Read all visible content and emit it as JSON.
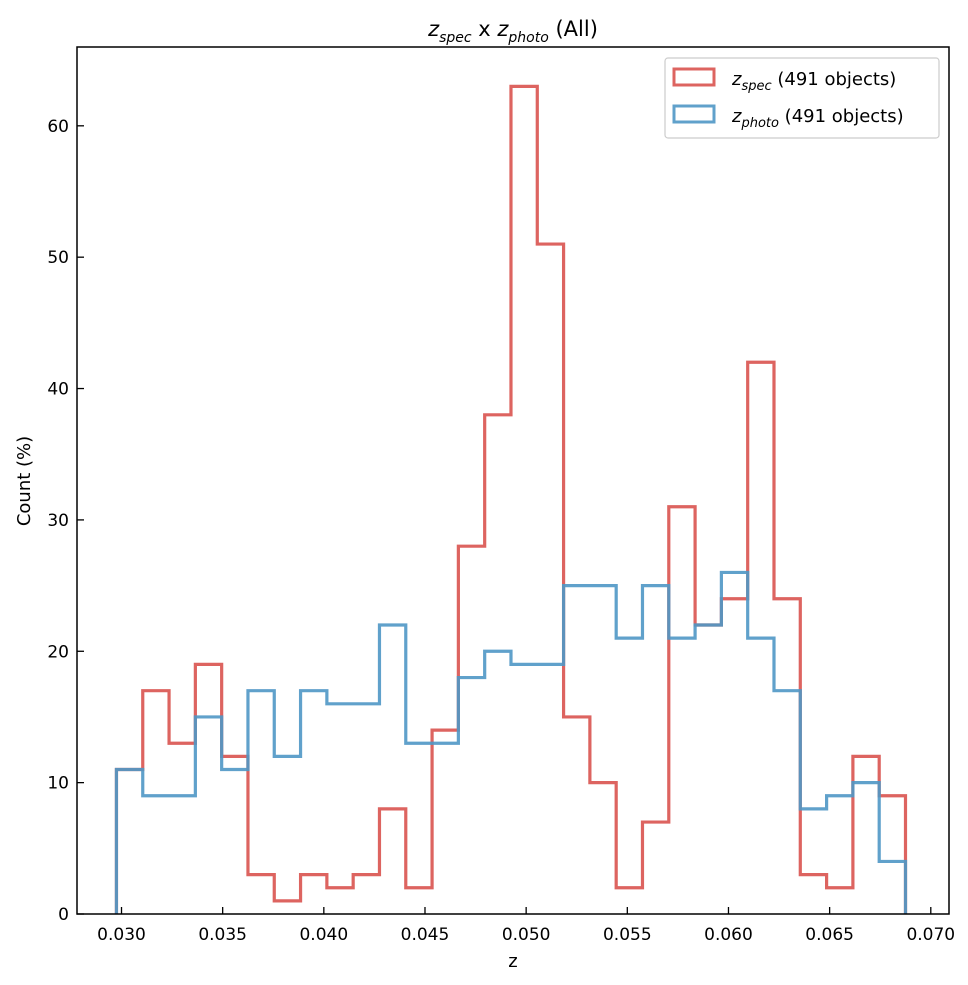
{
  "chart_data": {
    "type": "histogram-step",
    "title": {
      "var1": "z",
      "sub1": "spec",
      "middle": " x ",
      "var2": "z",
      "sub2": "photo",
      "suffix": " (All)"
    },
    "xlabel": "z",
    "ylabel": "Count (%)",
    "xlim": [
      0.0278,
      0.0709
    ],
    "ylim": [
      0,
      66
    ],
    "xticks": [
      0.03,
      0.035,
      0.04,
      0.045,
      0.05,
      0.055,
      0.06,
      0.065,
      0.07
    ],
    "xtick_labels": [
      "0.030",
      "0.035",
      "0.040",
      "0.045",
      "0.050",
      "0.055",
      "0.060",
      "0.065",
      "0.070"
    ],
    "yticks": [
      0,
      10,
      20,
      30,
      40,
      50,
      60
    ],
    "ytick_labels": [
      "0",
      "10",
      "20",
      "30",
      "40",
      "50",
      "60"
    ],
    "bin_start": 0.02975,
    "bin_width": 0.0013,
    "legend_position": "top-right",
    "series": [
      {
        "var": "z",
        "sub": "spec",
        "label_suffix": " (491 objects)",
        "color": "#d9534f",
        "values": [
          11,
          17,
          13,
          19,
          12,
          3,
          1,
          3,
          2,
          3,
          8,
          2,
          14,
          28,
          38,
          63,
          51,
          15,
          10,
          2,
          7,
          31,
          22,
          24,
          42,
          24,
          3,
          2,
          12,
          9
        ]
      },
      {
        "var": "z",
        "sub": "photo",
        "label_suffix": " (491 objects)",
        "color": "#4f97c5",
        "values": [
          11,
          9,
          9,
          15,
          11,
          17,
          12,
          17,
          16,
          16,
          22,
          13,
          13,
          18,
          20,
          19,
          19,
          25,
          25,
          21,
          25,
          21,
          22,
          26,
          21,
          17,
          8,
          9,
          10,
          4
        ]
      }
    ]
  }
}
